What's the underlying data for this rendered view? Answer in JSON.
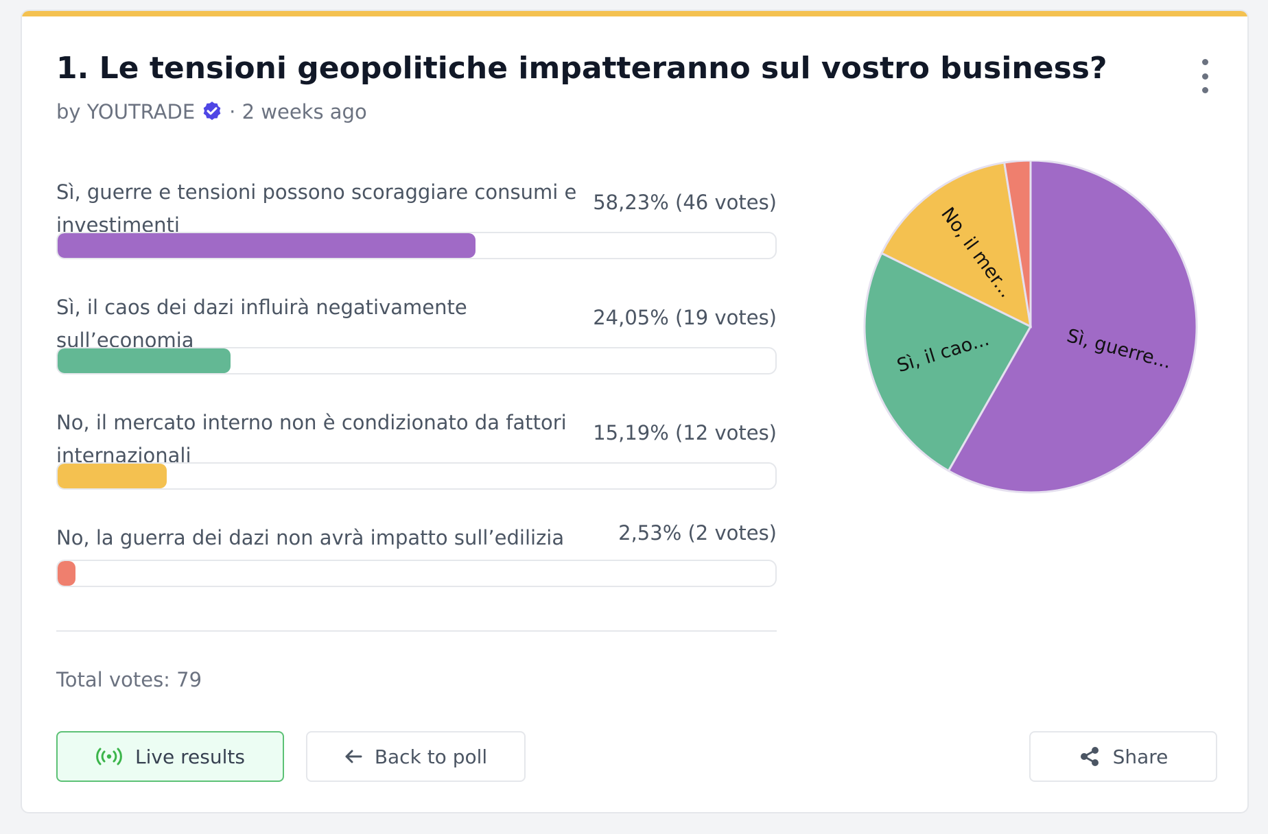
{
  "poll": {
    "title": "1. Le tensioni geopolitiche impatteranno sul vostro business?",
    "author_prefix": "by YOUTRADE",
    "time": "· 2 weeks ago"
  },
  "options": [
    {
      "label": "Sì, guerre e tensioni possono scoraggiare consumi e investimenti",
      "result": "58,23% (46 votes)",
      "percent": 58.23,
      "votes": 46,
      "color": "#a06ac6",
      "pie_label": "Sì, guerre..."
    },
    {
      "label": "Sì, il caos dei dazi influirà negativamente sull’economia",
      "result": "24,05% (19 votes)",
      "percent": 24.05,
      "votes": 19,
      "color": "#63b894",
      "pie_label": "Sì, il cao..."
    },
    {
      "label": "No, il mercato interno non è condizionato da fattori internazionali",
      "result": "15,19% (12 votes)",
      "percent": 15.19,
      "votes": 12,
      "color": "#f4c150",
      "pie_label": "No, il mer..."
    },
    {
      "label": "No, la guerra dei dazi non avrà impatto sull’edilizia",
      "result": "2,53% (2 votes)",
      "percent": 2.53,
      "votes": 2,
      "color": "#ef7f6e",
      "pie_label": ""
    }
  ],
  "total_votes": "Total votes: 79",
  "buttons": {
    "live": "Live results",
    "back": "Back to poll",
    "share": "Share"
  },
  "chart_data": {
    "type": "pie",
    "categories": [
      "Sì, guerre e tensioni possono scoraggiare consumi e investimenti",
      "Sì, il caos dei dazi influirà negativamente sull’economia",
      "No, il mercato interno non è condizionato da fattori internazionali",
      "No, la guerra dei dazi non avrà impatto sull’edilizia"
    ],
    "values": [
      46,
      19,
      12,
      2
    ],
    "slice_labels": [
      "Sì, guerre...",
      "Sì, il cao...",
      "No, il mer...",
      ""
    ],
    "colors": [
      "#a06ac6",
      "#63b894",
      "#f4c150",
      "#ef7f6e"
    ]
  }
}
